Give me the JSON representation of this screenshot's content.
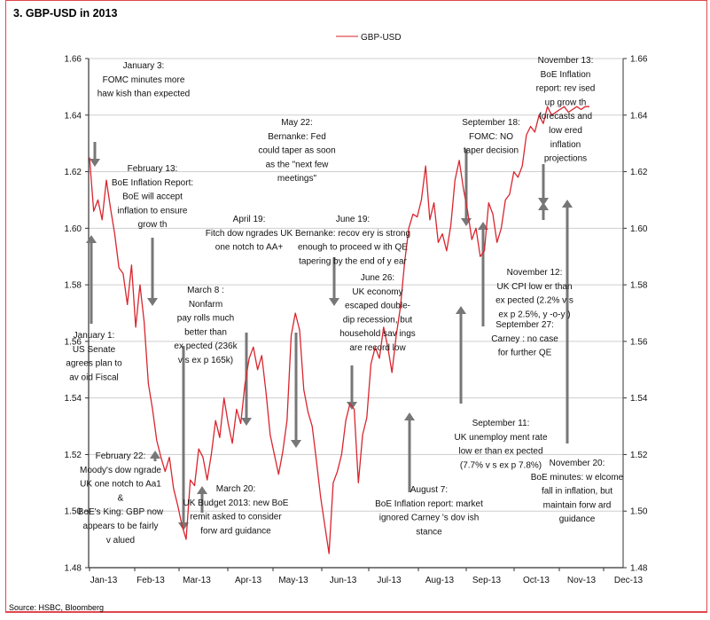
{
  "title": "3. GBP-USD in 2013",
  "source": "Source: HSBC, Bloomberg",
  "chart_data": {
    "type": "line",
    "title": "3. GBP-USD in 2013",
    "xlabel": "",
    "ylabel": "",
    "legend": {
      "entries": [
        "GBP-USD"
      ],
      "placement": "top-center"
    },
    "ylim": [
      1.48,
      1.66
    ],
    "yticks": [
      "1.48",
      "1.50",
      "1.52",
      "1.54",
      "1.56",
      "1.58",
      "1.60",
      "1.62",
      "1.64",
      "1.66"
    ],
    "xticks": [
      "Jan-13",
      "Feb-13",
      "Mar-13",
      "Apr-13",
      "May-13",
      "Jun-13",
      "Jul-13",
      "Aug-13",
      "Sep-13",
      "Oct-13",
      "Nov-13",
      "Dec-13"
    ],
    "grid": true,
    "series": [
      {
        "name": "GBP-USD",
        "color": "#d9252e",
        "x": [
          0,
          0.1,
          0.2,
          0.3,
          0.4,
          0.5,
          0.6,
          0.7,
          0.8,
          0.9,
          1.0,
          1.1,
          1.2,
          1.3,
          1.4,
          1.5,
          1.6,
          1.7,
          1.8,
          1.9,
          2.0,
          2.1,
          2.2,
          2.3,
          2.4,
          2.5,
          2.6,
          2.7,
          2.8,
          2.9,
          3.0,
          3.1,
          3.2,
          3.3,
          3.4,
          3.5,
          3.6,
          3.7,
          3.8,
          3.9,
          4.0,
          4.1,
          4.2,
          4.3,
          4.4,
          4.5,
          4.6,
          4.7,
          4.8,
          4.9,
          5.0,
          5.1,
          5.2,
          5.3,
          5.4,
          5.5,
          5.6,
          5.7,
          5.8,
          5.9,
          6.0,
          6.1,
          6.2,
          6.3,
          6.4,
          6.5,
          6.6,
          6.7,
          6.8,
          6.9,
          7.0,
          7.1,
          7.2,
          7.3,
          7.4,
          7.5,
          7.6,
          7.7,
          7.8,
          7.9,
          8.0,
          8.1,
          8.2,
          8.3,
          8.4,
          8.5,
          8.6,
          8.7,
          8.8,
          8.9,
          9.0,
          9.1,
          9.2,
          9.3,
          9.4,
          9.5,
          9.6,
          9.7,
          9.8,
          9.9,
          10.0,
          10.1,
          10.2,
          10.3,
          10.4,
          10.5,
          10.6,
          10.7,
          10.8,
          10.9,
          11.0,
          11.1,
          11.2,
          11.3,
          11.4,
          11.5,
          11.6,
          11.7,
          11.8,
          11.9
        ],
        "values": [
          1.625,
          1.606,
          1.61,
          1.603,
          1.617,
          1.607,
          1.598,
          1.586,
          1.584,
          1.573,
          1.587,
          1.565,
          1.58,
          1.567,
          1.545,
          1.536,
          1.525,
          1.519,
          1.514,
          1.519,
          1.508,
          1.502,
          1.495,
          1.49,
          1.511,
          1.509,
          1.522,
          1.519,
          1.511,
          1.52,
          1.532,
          1.526,
          1.54,
          1.531,
          1.524,
          1.536,
          1.531,
          1.545,
          1.554,
          1.558,
          1.55,
          1.555,
          1.542,
          1.527,
          1.52,
          1.513,
          1.521,
          1.532,
          1.562,
          1.57,
          1.564,
          1.543,
          1.535,
          1.53,
          1.518,
          1.505,
          1.495,
          1.485,
          1.51,
          1.514,
          1.52,
          1.532,
          1.538,
          1.536,
          1.51,
          1.527,
          1.533,
          1.552,
          1.558,
          1.554,
          1.565,
          1.558,
          1.549,
          1.562,
          1.572,
          1.588,
          1.6,
          1.605,
          1.604,
          1.61,
          1.622,
          1.603,
          1.609,
          1.595,
          1.598,
          1.592,
          1.601,
          1.617,
          1.624,
          1.614,
          1.606,
          1.596,
          1.6,
          1.59,
          1.592,
          1.609,
          1.605,
          1.595,
          1.6,
          1.61,
          1.612,
          1.62,
          1.618,
          1.622,
          1.633,
          1.636,
          1.634,
          1.64,
          1.637,
          1.643,
          1.64,
          1.641,
          1.642,
          1.643,
          1.641,
          1.642,
          1.643,
          1.642,
          1.643,
          1.643
        ]
      }
    ],
    "annotations": [
      {
        "lines": [
          "January 3:",
          "FOMC minutes more",
          "haw kish than expected"
        ]
      },
      {
        "lines": [
          "February 13:",
          "BoE Inflation Report:",
          "BoE will accept",
          "inflation to ensure",
          "grow th"
        ]
      },
      {
        "lines": [
          "January 1:",
          "US Senate",
          "agrees plan to",
          "av oid Fiscal"
        ]
      },
      {
        "lines": [
          "March 8 :",
          "Nonfarm",
          "pay rolls much",
          "better than",
          "ex pected (236k",
          "v s ex p 165k)"
        ]
      },
      {
        "lines": [
          "February 22:",
          "Moody's dow ngrade",
          "UK one notch to Aa1",
          "&",
          "BoE's King: GBP now",
          "appears to be fairly",
          "v alued"
        ]
      },
      {
        "lines": [
          "April 19:",
          "Fitch dow ngrades UK",
          "one notch to AA+"
        ]
      },
      {
        "lines": [
          "March 20:",
          "UK Budget 2013: new BoE",
          "remit asked to consider",
          "forw ard guidance"
        ]
      },
      {
        "lines": [
          "May 22:",
          "Bernanke: Fed",
          "could taper as soon",
          "as the \"next few",
          "meetings\""
        ]
      },
      {
        "lines": [
          "June 19:",
          "Bernanke: recov ery is strong",
          "enough to proceed w ith QE",
          "tapering by the end of y ear"
        ]
      },
      {
        "lines": [
          "June 26:",
          "UK economy",
          "escaped double-",
          "dip recession, but",
          "household sav ings",
          "are record low"
        ]
      },
      {
        "lines": [
          "September 18:",
          "FOMC: NO",
          "taper decision"
        ]
      },
      {
        "lines": [
          "November 13:",
          "BoE Inflation",
          "report: rev ised",
          "up grow th",
          "forecasts and",
          "low ered",
          "inflation",
          "projections"
        ]
      },
      {
        "lines": [
          "November 12:",
          "UK CPI low er than",
          "ex pected (2.2% v s",
          "ex p 2.5%, y -o-y )"
        ]
      },
      {
        "lines": [
          "September 27:",
          "Carney : no case",
          "for further QE"
        ]
      },
      {
        "lines": [
          "September 11:",
          "UK unemploy ment rate",
          "low er than ex pected",
          "(7.7% v s ex p 7.8%)"
        ]
      },
      {
        "lines": [
          "August 7:",
          "BoE Inflation report: market",
          "ignored Carney 's dov ish",
          "stance"
        ]
      },
      {
        "lines": [
          "November 20:",
          "BoE minutes: w elcome",
          "fall in inflation, but",
          "maintain forw ard",
          "guidance"
        ]
      }
    ]
  }
}
